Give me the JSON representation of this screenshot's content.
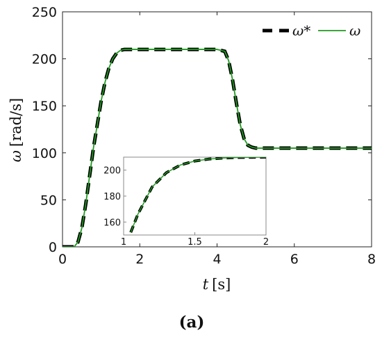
{
  "chart_data": {
    "type": "line",
    "xlabel_var": "t",
    "xlabel_unit": "[s]",
    "ylabel_var": "ω",
    "ylabel_unit": "[rad/s]",
    "xlim": [
      0,
      8
    ],
    "ylim": [
      0,
      250
    ],
    "xticks": [
      0,
      2,
      4,
      6,
      8
    ],
    "yticks": [
      0,
      50,
      100,
      150,
      200,
      250
    ],
    "grid": false,
    "legend_position": "top-right",
    "series": [
      {
        "name": "ω*",
        "style": "dashed",
        "color": "#000000",
        "x": [
          0,
          0.3,
          0.4,
          0.5,
          0.6,
          0.7,
          0.8,
          0.9,
          1.0,
          1.1,
          1.2,
          1.3,
          1.4,
          1.5,
          1.6,
          1.8,
          2.0,
          3.0,
          4.0,
          4.2,
          4.3,
          4.4,
          4.5,
          4.6,
          4.7,
          4.8,
          4.9,
          5.0,
          6.0,
          8.0
        ],
        "y": [
          0,
          0,
          5,
          20,
          45,
          75,
          105,
          130,
          155,
          175,
          190,
          200,
          206,
          209,
          210,
          210,
          210,
          210,
          210,
          208,
          198,
          178,
          153,
          130,
          115,
          108,
          106,
          105,
          105,
          105
        ]
      },
      {
        "name": "ω",
        "style": "solid",
        "color": "#1f9a1f",
        "x": [
          0,
          0.3,
          0.4,
          0.5,
          0.6,
          0.7,
          0.8,
          0.9,
          1.0,
          1.1,
          1.2,
          1.3,
          1.4,
          1.5,
          1.6,
          1.8,
          2.0,
          3.0,
          4.0,
          4.2,
          4.3,
          4.4,
          4.5,
          4.6,
          4.7,
          4.8,
          4.9,
          5.0,
          6.0,
          8.0
        ],
        "y": [
          0,
          0,
          5,
          20,
          45,
          75,
          105,
          130,
          155,
          175,
          190,
          200,
          206,
          209,
          210,
          210,
          210,
          210,
          210,
          208,
          198,
          178,
          153,
          130,
          115,
          108,
          106,
          105,
          105,
          105
        ]
      }
    ],
    "inset": {
      "xlim": [
        1,
        2
      ],
      "ylim": [
        150,
        210
      ],
      "xticks": [
        1,
        1.5,
        2
      ],
      "yticks": [
        160,
        180,
        200
      ],
      "x": [
        1.05,
        1.1,
        1.2,
        1.3,
        1.4,
        1.5,
        1.6,
        1.7,
        1.8,
        1.9,
        2.0
      ],
      "y": [
        152,
        166,
        187,
        198,
        204,
        207,
        208.5,
        209.3,
        209.7,
        209.9,
        210
      ]
    }
  },
  "caption": "(a)"
}
